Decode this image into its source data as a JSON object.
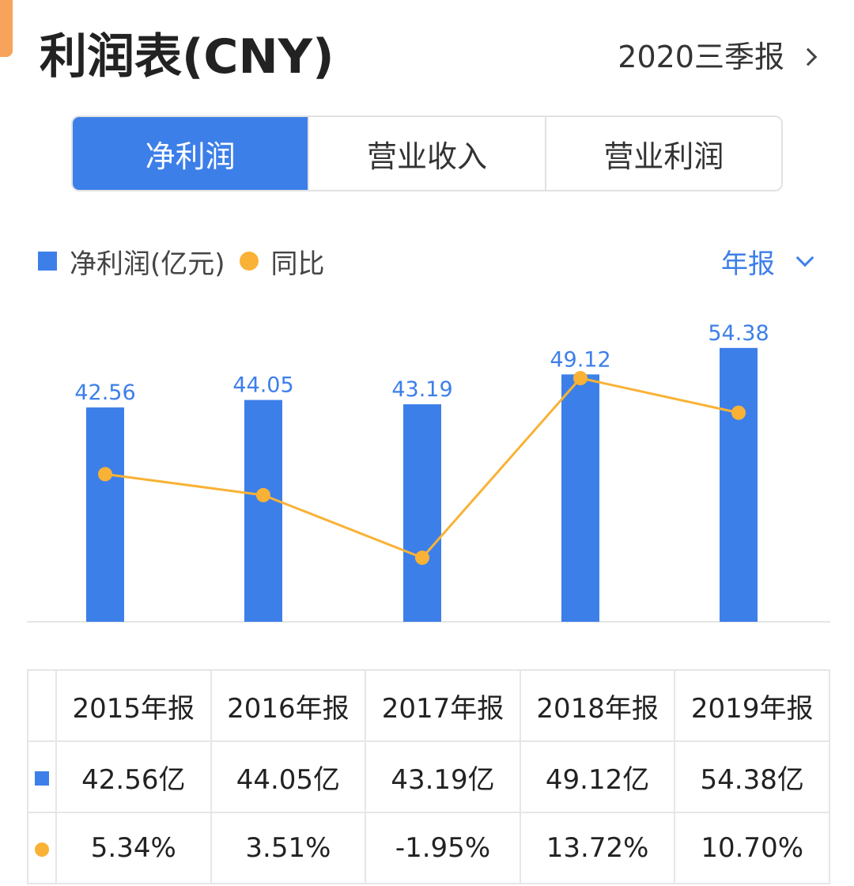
{
  "header": {
    "title": "利润表(CNY)",
    "period": "2020三季报"
  },
  "tabs": [
    {
      "label": "净利润",
      "active": true
    },
    {
      "label": "营业收入",
      "active": false
    },
    {
      "label": "营业利润",
      "active": false
    }
  ],
  "legend": {
    "bar_label": "净利润(亿元)",
    "line_label": "同比",
    "period_select": "年报"
  },
  "colors": {
    "accent": "#3d7fe9",
    "line": "#f9b236",
    "positive": "#e84c4c",
    "negative": "#2aa85c"
  },
  "chart_data": {
    "type": "bar",
    "categories": [
      "2015年报",
      "2016年报",
      "2017年报",
      "2018年报",
      "2019年报"
    ],
    "series": [
      {
        "name": "净利润(亿元)",
        "type": "bar",
        "values": [
          42.56,
          44.05,
          43.19,
          49.12,
          54.38
        ]
      },
      {
        "name": "同比",
        "type": "line",
        "values": [
          5.34,
          3.51,
          -1.95,
          13.72,
          10.7
        ]
      }
    ],
    "bar_labels": [
      "42.56",
      "44.05",
      "43.19",
      "49.12",
      "54.38"
    ]
  },
  "table": {
    "headers": [
      "2015年报",
      "2016年报",
      "2017年报",
      "2018年报",
      "2019年报"
    ],
    "net_profit": [
      "42.56亿",
      "44.05亿",
      "43.19亿",
      "49.12亿",
      "54.38亿"
    ],
    "yoy": [
      "5.34%",
      "3.51%",
      "-1.95%",
      "13.72%",
      "10.70%"
    ]
  }
}
